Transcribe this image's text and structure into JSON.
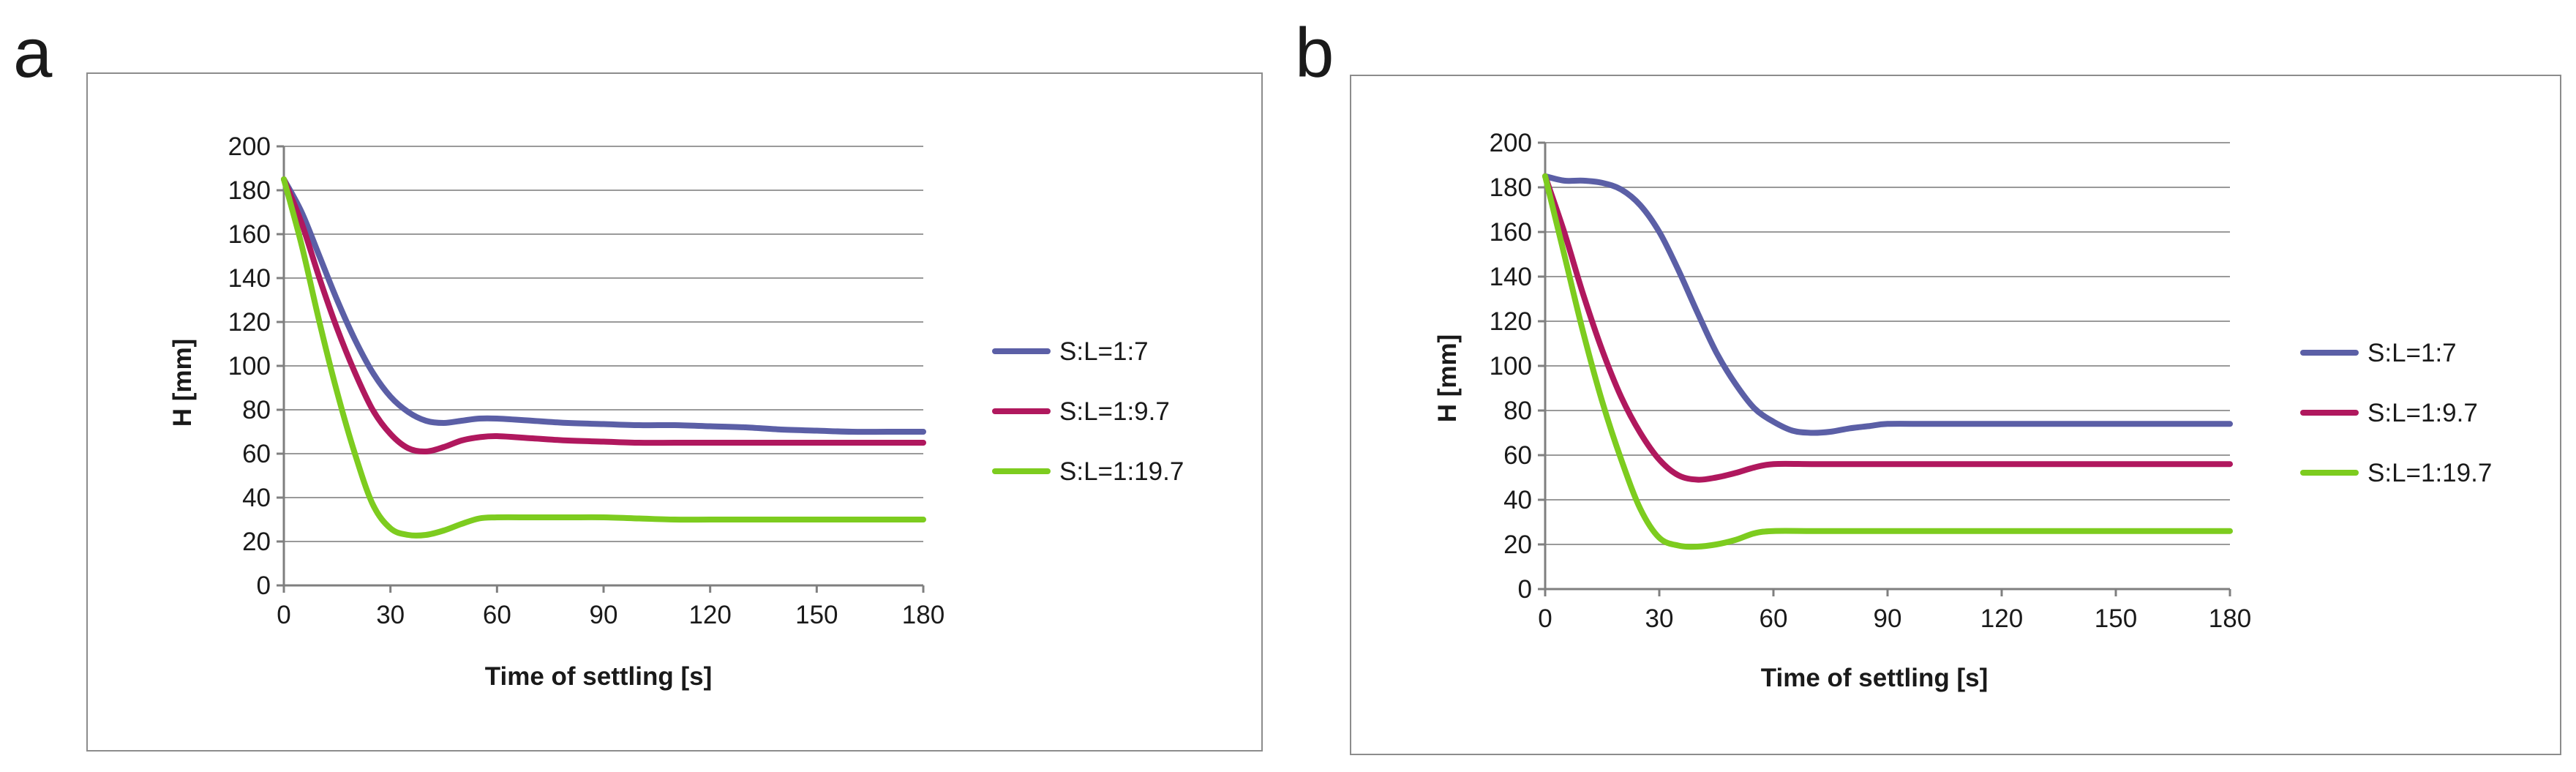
{
  "colors": {
    "series_1": "#5b5fa6",
    "series_2": "#b0185e",
    "series_3": "#7dcc1f"
  },
  "chart_data": [
    {
      "panel_label": "a",
      "type": "line",
      "title": "",
      "xlabel": "Time of settling [s]",
      "ylabel": "H [mm]",
      "xlim": [
        0,
        180
      ],
      "ylim": [
        0,
        200
      ],
      "xticks": [
        0,
        30,
        60,
        90,
        120,
        150,
        180
      ],
      "yticks": [
        0,
        20,
        40,
        60,
        80,
        100,
        120,
        140,
        160,
        180,
        200
      ],
      "grid": "horizontal",
      "legend_position": "right",
      "series": [
        {
          "name": "S:L=1:7",
          "color_key": "series_1",
          "x": [
            0,
            5,
            10,
            15,
            20,
            25,
            30,
            35,
            40,
            45,
            50,
            55,
            60,
            70,
            80,
            90,
            100,
            110,
            120,
            130,
            140,
            150,
            160,
            170,
            180
          ],
          "y": [
            185,
            170,
            150,
            130,
            112,
            97,
            86,
            79,
            75,
            74,
            75,
            76,
            76,
            75,
            74,
            73.5,
            73,
            73,
            72.5,
            72,
            71,
            70.5,
            70,
            70,
            70
          ]
        },
        {
          "name": "S:L=1:9.7",
          "color_key": "series_2",
          "x": [
            0,
            5,
            10,
            15,
            20,
            25,
            30,
            35,
            40,
            45,
            50,
            55,
            60,
            70,
            80,
            90,
            100,
            110,
            120,
            130,
            140,
            150,
            160,
            170,
            180
          ],
          "y": [
            185,
            165,
            140,
            117,
            97,
            80,
            69,
            62.5,
            61,
            63,
            66,
            67.5,
            68,
            67,
            66,
            65.5,
            65,
            65,
            65,
            65,
            65,
            65,
            65,
            65,
            65
          ]
        },
        {
          "name": "S:L=1:19.7",
          "color_key": "series_3",
          "x": [
            0,
            5,
            10,
            15,
            20,
            25,
            30,
            35,
            40,
            45,
            50,
            55,
            60,
            70,
            80,
            90,
            100,
            110,
            120,
            130,
            140,
            150,
            160,
            170,
            180
          ],
          "y": [
            185,
            155,
            120,
            88,
            60,
            37,
            26,
            23,
            23,
            25,
            28,
            30.5,
            31,
            31,
            31,
            31,
            30.5,
            30,
            30,
            30,
            30,
            30,
            30,
            30,
            30
          ]
        }
      ]
    },
    {
      "panel_label": "b",
      "type": "line",
      "title": "",
      "xlabel": "Time of settling [s]",
      "ylabel": "H [mm]",
      "xlim": [
        0,
        180
      ],
      "ylim": [
        0,
        200
      ],
      "xticks": [
        0,
        30,
        60,
        90,
        120,
        150,
        180
      ],
      "yticks": [
        0,
        20,
        40,
        60,
        80,
        100,
        120,
        140,
        160,
        180,
        200
      ],
      "grid": "horizontal",
      "legend_position": "right",
      "series": [
        {
          "name": "S:L=1:7",
          "color_key": "series_1",
          "x": [
            0,
            5,
            10,
            15,
            20,
            25,
            30,
            35,
            40,
            45,
            50,
            55,
            60,
            65,
            70,
            75,
            80,
            85,
            90,
            100,
            110,
            120,
            130,
            140,
            150,
            160,
            170,
            180
          ],
          "y": [
            185,
            183,
            183,
            182,
            179,
            172,
            160,
            143,
            124,
            106,
            92,
            81,
            75,
            71,
            70,
            70.5,
            72,
            73,
            74,
            74,
            74,
            74,
            74,
            74,
            74,
            74,
            74,
            74
          ]
        },
        {
          "name": "S:L=1:9.7",
          "color_key": "series_2",
          "x": [
            0,
            5,
            10,
            15,
            20,
            25,
            30,
            35,
            40,
            45,
            50,
            55,
            60,
            70,
            80,
            90,
            100,
            110,
            120,
            130,
            140,
            150,
            160,
            170,
            180
          ],
          "y": [
            185,
            160,
            132,
            107,
            86,
            70,
            58,
            51,
            49,
            50,
            52,
            54.5,
            56,
            56,
            56,
            56,
            56,
            56,
            56,
            56,
            56,
            56,
            56,
            56,
            56
          ]
        },
        {
          "name": "S:L=1:19.7",
          "color_key": "series_3",
          "x": [
            0,
            5,
            10,
            15,
            20,
            25,
            30,
            35,
            40,
            45,
            50,
            55,
            60,
            70,
            80,
            90,
            100,
            110,
            120,
            130,
            140,
            150,
            160,
            170,
            180
          ],
          "y": [
            185,
            150,
            115,
            84,
            58,
            36,
            23,
            19.5,
            19,
            20,
            22,
            25,
            26,
            26,
            26,
            26,
            26,
            26,
            26,
            26,
            26,
            26,
            26,
            26,
            26
          ]
        }
      ]
    }
  ]
}
